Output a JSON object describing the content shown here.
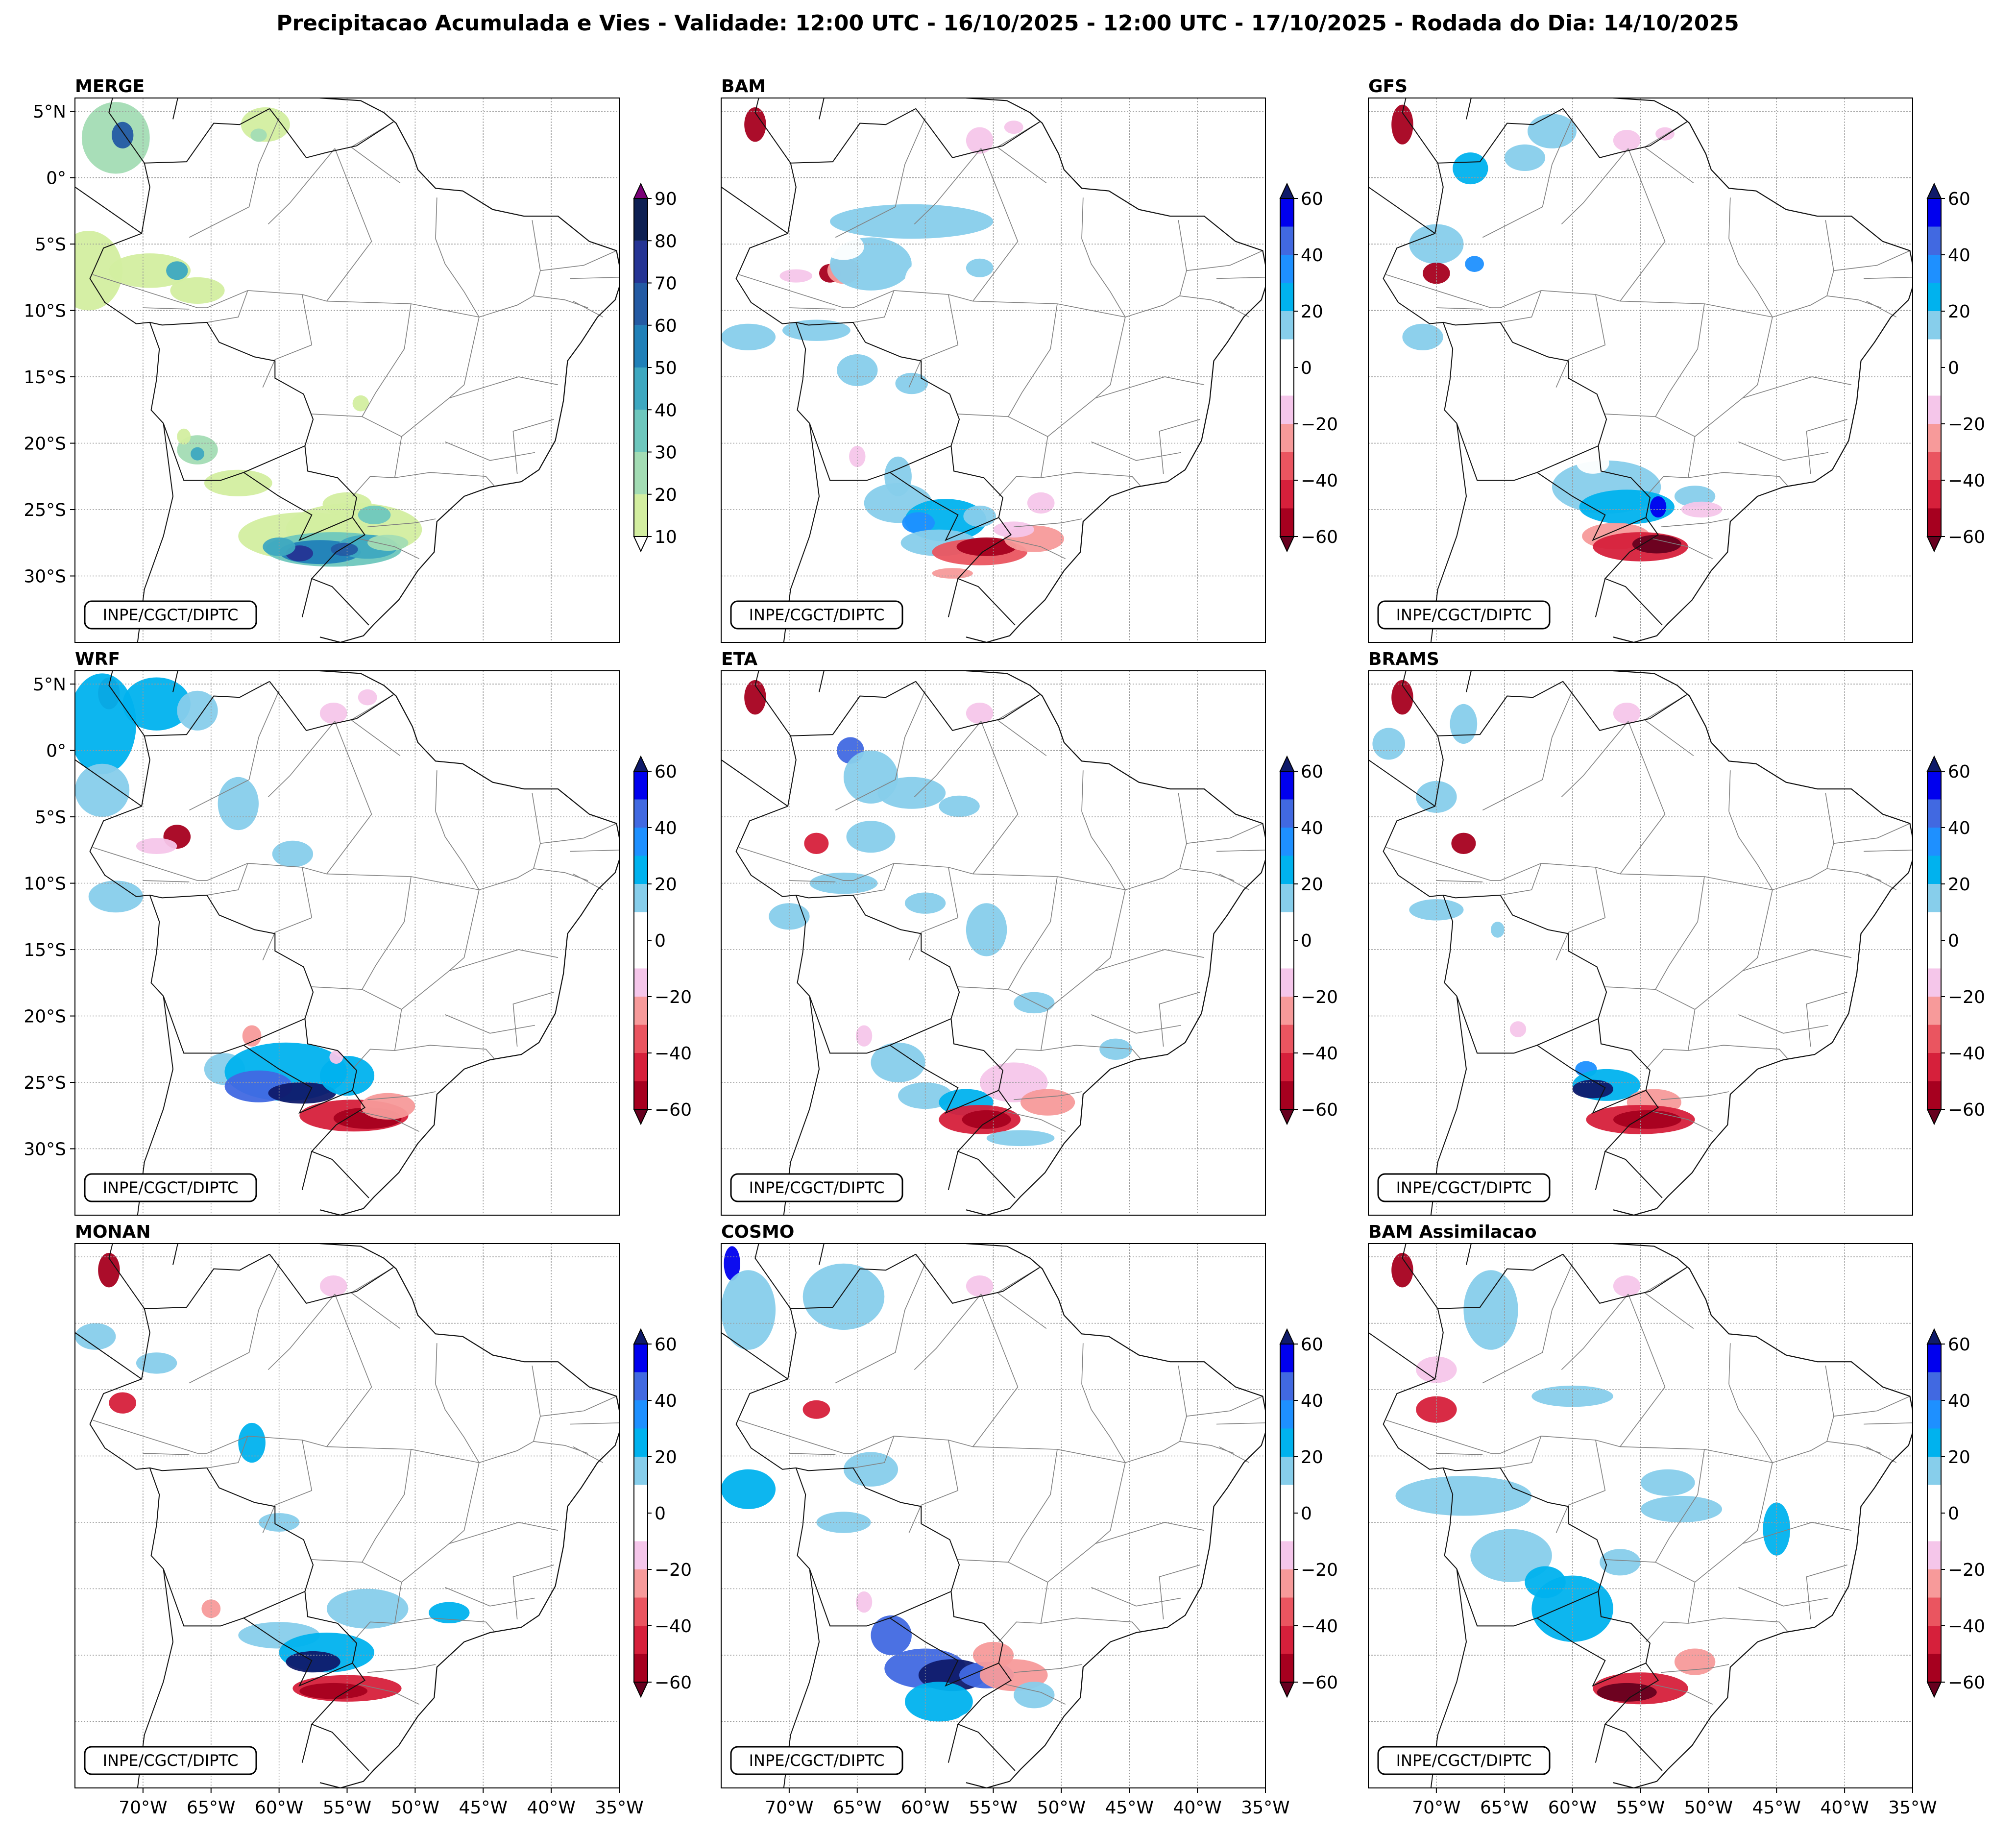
{
  "figure": {
    "title": "Precipitacao Acumulada e Vies - Validade: 12:00 UTC - 16/10/2025 - 12:00 UTC - 17/10/2025 - Rodada do Dia: 14/10/2025",
    "credit": "INPE/CGCT/DIPTC"
  },
  "axes": {
    "lat_labels": [
      "5°N",
      "0°",
      "5°S",
      "10°S",
      "15°S",
      "20°S",
      "25°S",
      "30°S"
    ],
    "lat_values": [
      5,
      0,
      -5,
      -10,
      -15,
      -20,
      -25,
      -30
    ],
    "lon_labels": [
      "70°W",
      "65°W",
      "60°W",
      "55°W",
      "50°W",
      "45°W",
      "40°W",
      "35°W"
    ],
    "lon_values": [
      -70,
      -65,
      -60,
      -55,
      -50,
      -45,
      -40,
      -35
    ],
    "lon_range": [
      -75,
      -35
    ],
    "lat_range": [
      -35,
      6
    ]
  },
  "colorbars": {
    "merge": {
      "labels": [
        "90",
        "80",
        "70",
        "60",
        "50",
        "40",
        "30",
        "20",
        "10"
      ],
      "values": [
        90,
        80,
        70,
        60,
        50,
        40,
        30,
        20,
        10
      ],
      "colors": [
        "#eff8b3",
        "#d3eea0",
        "#a3dcb4",
        "#6ec7bd",
        "#3ea8c0",
        "#2080b8",
        "#235aa3",
        "#253494",
        "#0d1f52"
      ]
    },
    "bias": {
      "labels": [
        "60",
        "40",
        "20",
        "0",
        "−20",
        "−40",
        "−60"
      ],
      "values": [
        60,
        40,
        20,
        0,
        -20,
        -40,
        -60
      ],
      "colors": [
        "#67001f",
        "#a6001f",
        "#d6203b",
        "#ea5560",
        "#f79a9a",
        "#f5c6ea",
        "#ffffff",
        "#ffffff",
        "#87ceeb",
        "#00b2ee",
        "#1e90ff",
        "#4169e1",
        "#0000ee",
        "#0f1a6a"
      ]
    }
  },
  "panels": [
    {
      "id": "merge",
      "label": "MERGE",
      "cbar": "merge"
    },
    {
      "id": "bam",
      "label": "BAM",
      "cbar": "bias"
    },
    {
      "id": "gfs",
      "label": "GFS",
      "cbar": "bias"
    },
    {
      "id": "wrf",
      "label": "WRF",
      "cbar": "bias"
    },
    {
      "id": "eta",
      "label": "ETA",
      "cbar": "bias"
    },
    {
      "id": "brams",
      "label": "BRAMS",
      "cbar": "bias"
    },
    {
      "id": "monan",
      "label": "MONAN",
      "cbar": "bias"
    },
    {
      "id": "cosmo",
      "label": "COSMO",
      "cbar": "bias"
    },
    {
      "id": "bam-assim",
      "label": "BAM Assimilacao",
      "cbar": "bias"
    }
  ]
}
